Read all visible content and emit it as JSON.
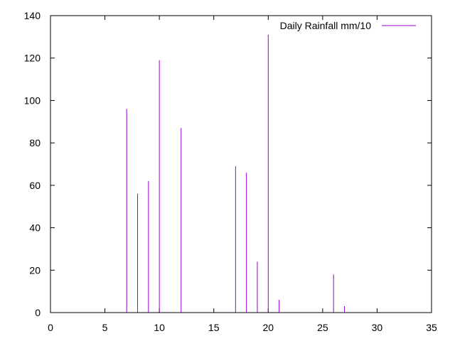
{
  "chart_data": {
    "type": "bar",
    "style": "impulses",
    "title": "",
    "xlabel": "",
    "ylabel": "",
    "xlim": [
      0,
      35
    ],
    "ylim": [
      0,
      140
    ],
    "xticks": [
      0,
      5,
      10,
      15,
      20,
      25,
      30,
      35
    ],
    "yticks": [
      0,
      20,
      40,
      60,
      80,
      100,
      120,
      140
    ],
    "grid": false,
    "legend_position": "top-right",
    "series": [
      {
        "name": "Daily Rainfall mm/10",
        "color": "#9400d3",
        "x": [
          7,
          8,
          9,
          10,
          12,
          17,
          18,
          19,
          20,
          21,
          26,
          27
        ],
        "y": [
          96,
          56,
          62,
          119,
          87,
          69,
          66,
          24,
          131,
          6,
          18,
          3
        ]
      }
    ]
  }
}
